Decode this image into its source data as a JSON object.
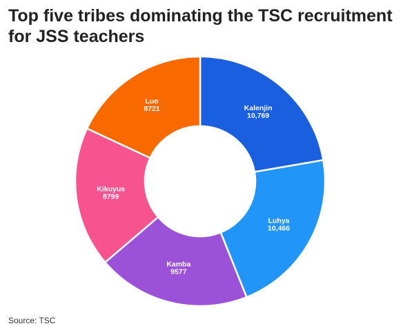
{
  "header": {
    "title": "Top five tribes dominating the TSC recruitment for JSS teachers"
  },
  "footer": {
    "source": "Source: TSC"
  },
  "chart_data": {
    "type": "pie",
    "variant": "donut",
    "title": "Top five tribes dominating the TSC recruitment for JSS teachers",
    "categories": [
      "Kalenjin",
      "Luhya",
      "Kamba",
      "Kikuyus",
      "Luo"
    ],
    "values": [
      10769,
      10466,
      9577,
      8799,
      8721
    ],
    "value_labels": [
      "10,769",
      "10,466",
      "9577",
      "8799",
      "8721"
    ],
    "colors": [
      "#1a5fdf",
      "#2196f8",
      "#9b51d8",
      "#f6538f",
      "#f86a00"
    ],
    "start": "12 o'clock",
    "direction": "clockwise",
    "legend": "none"
  }
}
